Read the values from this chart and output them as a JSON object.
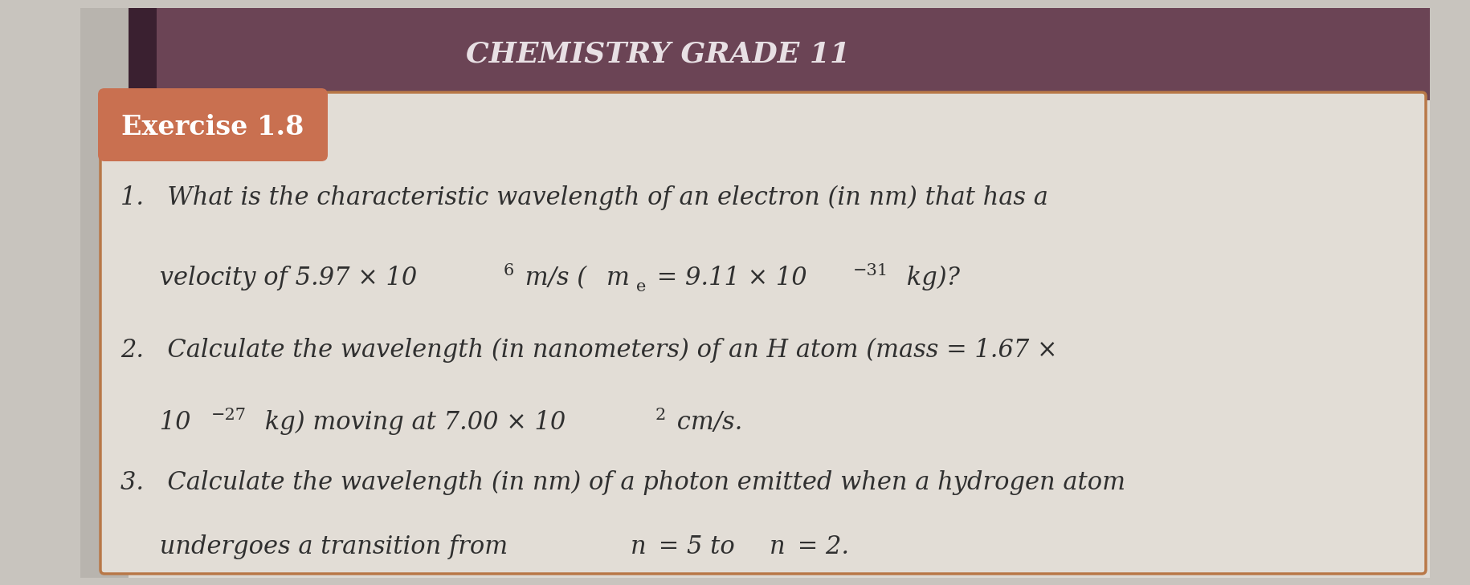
{
  "title": "CHEMISTRY GRADE 11",
  "title_bg_color": "#6b4455",
  "title_text_color": "#e8e0e4",
  "exercise_label": "Exercise 1.8",
  "exercise_label_bg": "#c97050",
  "exercise_label_text_color": "#ffffff",
  "background_color": "#c8c4be",
  "page_color": "#dedad4",
  "content_bg_color": "#e2ddd6",
  "box_border_color": "#b87848",
  "dark_bar_color": "#3a2030",
  "text_color": "#303030",
  "figsize": [
    18.31,
    7.29
  ],
  "dpi": 100,
  "q1_line1": "1.   What is the characteristic wavelength of an electron (in nm) that has a",
  "q1_line2_a": "     velocity of 5.97 × 10",
  "q1_line2_sup1": "6",
  "q1_line2_b": " m/s (",
  "q1_line2_m": "m",
  "q1_line2_sub": "e",
  "q1_line2_c": " = 9.11 × 10",
  "q1_line2_sup2": "−31",
  "q1_line2_d": " kg)?",
  "q2_line1": "2.   Calculate the wavelength (in nanometers) of an H atom (mass = 1.67 ×",
  "q2_line2_a": "     10",
  "q2_line2_sup": "−27",
  "q2_line2_b": " kg) moving at 7.00 × 10",
  "q2_line2_sup2": "2",
  "q2_line2_c": " cm/s.",
  "q3_line1": "3.   Calculate the wavelength (in nm) of a photon emitted when a hydrogen atom",
  "q3_line2_a": "     undergoes a transition from ",
  "q3_line2_n1": "n",
  "q3_line2_b": " = 5 to ",
  "q3_line2_n2": "n",
  "q3_line2_c": " = 2."
}
